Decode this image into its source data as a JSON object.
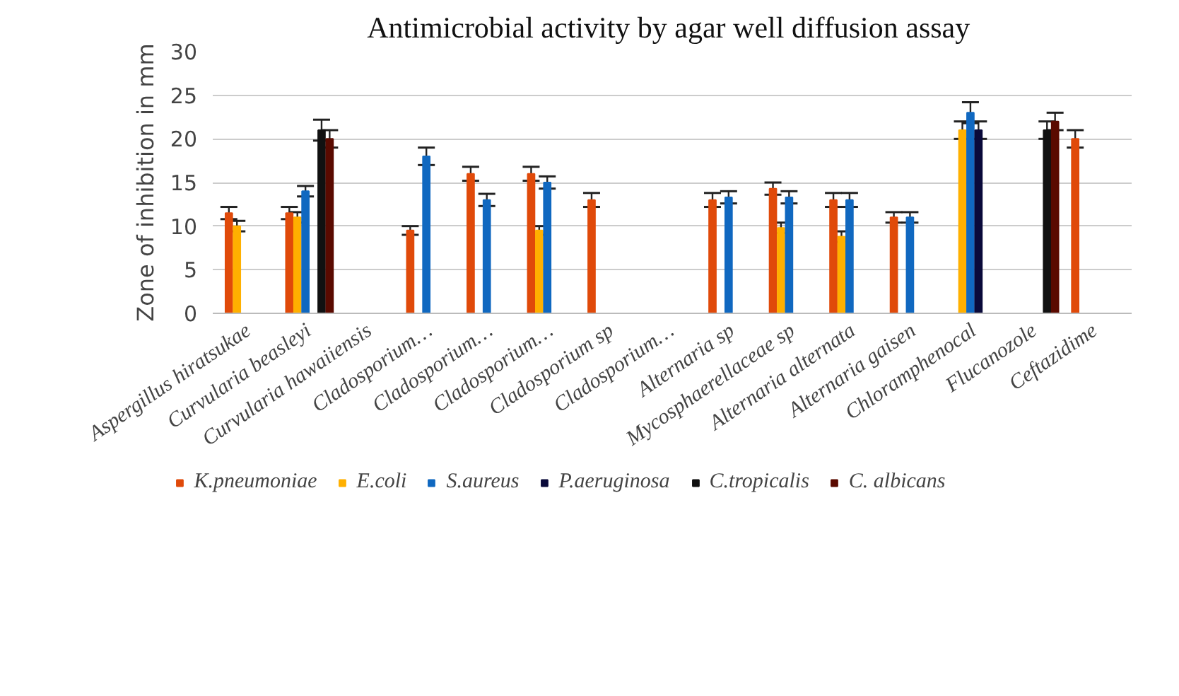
{
  "chart_data": {
    "type": "bar",
    "title": "Antimicrobial activity  by agar well diffusion assay",
    "ylabel": "Zone of inhibition in mm",
    "categories": [
      "Aspergillus hiratsukae",
      "Curvularia beasleyi",
      "Curvularia hawaiiensis",
      "Cladosporium…",
      "Cladosporium…",
      "Cladosporium…",
      "Cladosporium sp",
      "Cladosporium…",
      "Alternaria sp",
      "Mycosphaerellaceae sp",
      "Alternaria alternata",
      "Alternaria gaisen",
      "Chloramphenocal",
      "Flucanozole",
      "Ceftazidime"
    ],
    "series": [
      {
        "name": "K.pneumoniae",
        "color": "#e04a0a",
        "values": [
          11.5,
          11.5,
          null,
          9.5,
          16,
          16,
          13,
          null,
          13,
          14.3,
          13,
          11,
          null,
          null,
          20
        ],
        "errors": [
          0.7,
          0.7,
          null,
          0.5,
          0.8,
          0.8,
          0.8,
          null,
          0.8,
          0.7,
          0.8,
          0.6,
          null,
          null,
          1
        ]
      },
      {
        "name": "E.coli",
        "color": "#ffb000",
        "values": [
          10,
          11,
          null,
          null,
          null,
          9.5,
          null,
          null,
          null,
          9.8,
          8.8,
          null,
          21,
          null,
          null
        ],
        "errors": [
          0.6,
          0.6,
          null,
          null,
          null,
          0.5,
          null,
          null,
          null,
          0.6,
          0.6,
          null,
          1,
          null,
          null
        ]
      },
      {
        "name": "S.aureus",
        "color": "#1068c0",
        "values": [
          null,
          14,
          null,
          18,
          13,
          15,
          null,
          null,
          13.3,
          13.3,
          13,
          11,
          23,
          null,
          null
        ],
        "errors": [
          null,
          0.6,
          null,
          1,
          0.7,
          0.7,
          null,
          null,
          0.7,
          0.7,
          0.8,
          0.6,
          1.2,
          null,
          null
        ]
      },
      {
        "name": "P.aeruginosa",
        "color": "#0a0a3a",
        "values": [
          null,
          null,
          null,
          null,
          null,
          null,
          null,
          null,
          null,
          null,
          null,
          null,
          21,
          null,
          null
        ],
        "errors": [
          null,
          null,
          null,
          null,
          null,
          null,
          null,
          null,
          null,
          null,
          null,
          null,
          1,
          null,
          null
        ]
      },
      {
        "name": "C.tropicalis",
        "color": "#111111",
        "values": [
          null,
          21,
          null,
          null,
          null,
          null,
          null,
          null,
          null,
          null,
          null,
          null,
          null,
          21,
          null
        ],
        "errors": [
          null,
          1.2,
          null,
          null,
          null,
          null,
          null,
          null,
          null,
          null,
          null,
          null,
          null,
          1,
          null
        ]
      },
      {
        "name": "C. albicans",
        "color": "#5a0a00",
        "values": [
          null,
          20,
          null,
          null,
          null,
          null,
          null,
          null,
          null,
          null,
          null,
          null,
          null,
          22,
          null
        ],
        "errors": [
          null,
          1,
          null,
          null,
          null,
          null,
          null,
          null,
          null,
          null,
          null,
          null,
          null,
          1,
          null
        ]
      }
    ],
    "ylim": [
      0,
      30
    ],
    "yticks": [
      0,
      5,
      10,
      15,
      20,
      25,
      30
    ],
    "grid": "y",
    "legend": "bottom"
  }
}
